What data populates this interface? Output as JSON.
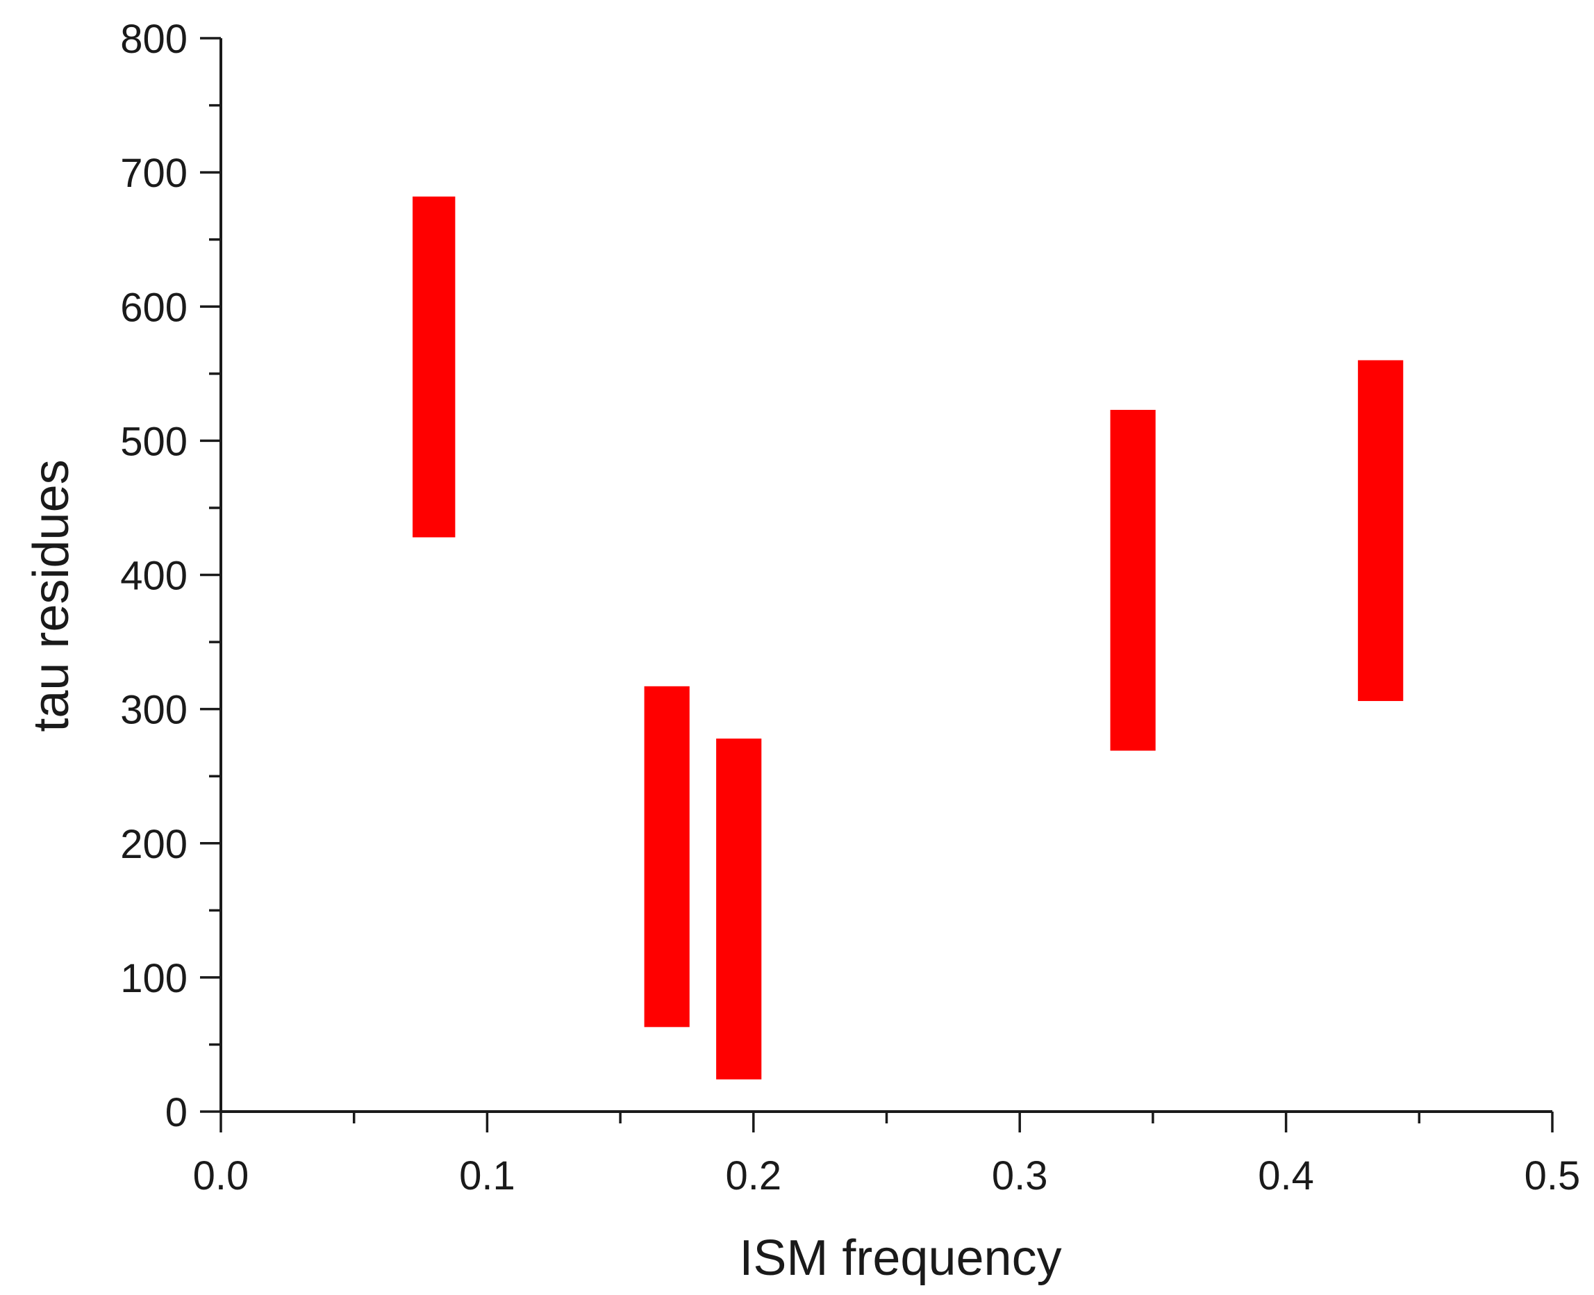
{
  "chart_data": {
    "type": "bar",
    "orientation": "floating-vertical-range",
    "title": "",
    "xlabel": "ISM frequency",
    "ylabel": "tau residues",
    "xlim": [
      0.0,
      0.5
    ],
    "ylim": [
      0,
      800
    ],
    "x_major_ticks": [
      0.0,
      0.1,
      0.2,
      0.3,
      0.4,
      0.5
    ],
    "x_tick_labels": [
      "0.0",
      "0.1",
      "0.2",
      "0.3",
      "0.4",
      "0.5"
    ],
    "x_minor_ticks": [
      0.05,
      0.15,
      0.25,
      0.35,
      0.45
    ],
    "y_major_ticks": [
      0,
      100,
      200,
      300,
      400,
      500,
      600,
      700,
      800
    ],
    "y_tick_labels": [
      "0",
      "100",
      "200",
      "300",
      "400",
      "500",
      "600",
      "700",
      "800"
    ],
    "y_minor_ticks": [
      50,
      150,
      250,
      350,
      450,
      550,
      650,
      750
    ],
    "grid": false,
    "legend": "none",
    "bar_color": "#ff0000",
    "bars": [
      {
        "x_start": 0.072,
        "x_end": 0.088,
        "y_start": 428,
        "y_end": 682
      },
      {
        "x_start": 0.159,
        "x_end": 0.176,
        "y_start": 63,
        "y_end": 317
      },
      {
        "x_start": 0.186,
        "x_end": 0.203,
        "y_start": 24,
        "y_end": 278
      },
      {
        "x_start": 0.334,
        "x_end": 0.351,
        "y_start": 269,
        "y_end": 523
      },
      {
        "x_start": 0.427,
        "x_end": 0.444,
        "y_start": 306,
        "y_end": 560
      }
    ]
  }
}
